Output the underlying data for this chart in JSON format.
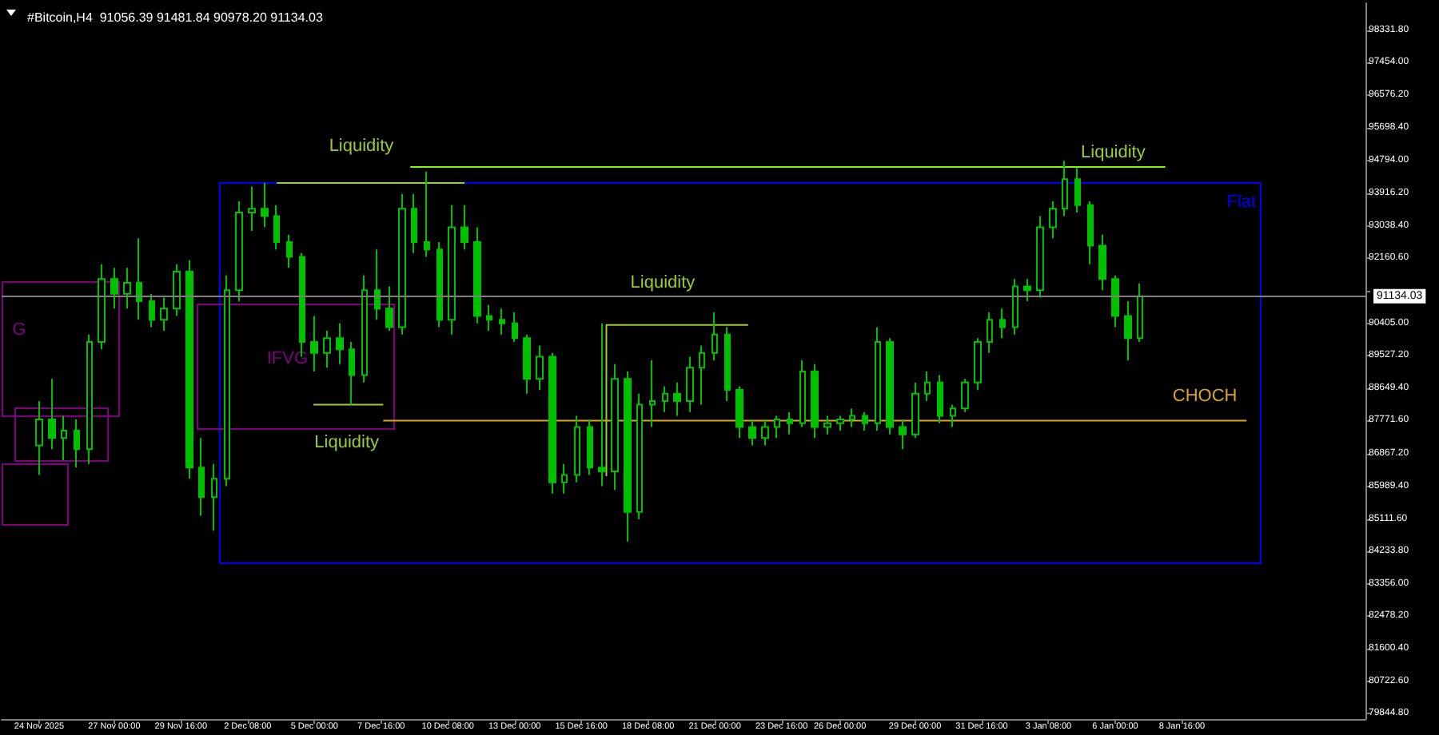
{
  "chart_data": {
    "type": "candlestick",
    "title": "#Bitcoin,H4  91056.39 91481.84 90978.20 91134.03",
    "color": "#00c000",
    "marker": "none",
    "line_style": "solid",
    "grid": false,
    "x": [
      "2025-11-24T00:00",
      "2025-11-24T12:00",
      "2025-11-25T00:00",
      "2025-11-25T12:00",
      "2025-11-26T00:00",
      "2025-11-26T12:00",
      "2025-11-27T00:00",
      "2025-11-27T12:00",
      "2025-11-28T00:00",
      "2025-11-28T12:00",
      "2025-11-29T00:00",
      "2025-11-29T12:00",
      "2025-11-30T00:00",
      "2025-11-30T12:00",
      "2025-12-01T00:00",
      "2025-12-01T12:00",
      "2025-12-02T00:00",
      "2025-12-02T12:00",
      "2025-12-03T00:00",
      "2025-12-03T12:00",
      "2025-12-04T00:00",
      "2025-12-04T12:00",
      "2025-12-05T00:00",
      "2025-12-05T12:00",
      "2025-12-06T00:00",
      "2025-12-06T12:00",
      "2025-12-07T00:00",
      "2025-12-07T12:00",
      "2025-12-08T00:00",
      "2025-12-08T12:00",
      "2025-12-09T00:00",
      "2025-12-09T12:00",
      "2025-12-10T00:00",
      "2025-12-10T12:00",
      "2025-12-11T00:00",
      "2025-12-11T12:00",
      "2025-12-12T00:00",
      "2025-12-12T12:00",
      "2025-12-13T00:00",
      "2025-12-13T12:00",
      "2025-12-14T00:00",
      "2025-12-14T12:00",
      "2025-12-15T00:00",
      "2025-12-15T12:00",
      "2025-12-16T00:00",
      "2025-12-16T12:00",
      "2025-12-17T00:00",
      "2025-12-17T12:00",
      "2025-12-18T00:00",
      "2025-12-18T12:00",
      "2025-12-19T00:00",
      "2025-12-19T12:00",
      "2025-12-20T00:00",
      "2025-12-20T12:00",
      "2025-12-21T00:00",
      "2025-12-21T12:00",
      "2025-12-22T00:00",
      "2025-12-22T12:00",
      "2025-12-23T00:00",
      "2025-12-23T12:00",
      "2025-12-24T00:00",
      "2025-12-24T12:00",
      "2025-12-25T00:00",
      "2025-12-25T12:00",
      "2025-12-26T00:00",
      "2025-12-26T12:00",
      "2025-12-27T00:00",
      "2025-12-27T12:00",
      "2025-12-28T00:00",
      "2025-12-28T12:00",
      "2025-12-29T00:00",
      "2025-12-29T12:00",
      "2025-12-30T00:00",
      "2025-12-30T12:00",
      "2025-12-31T00:00",
      "2025-12-31T12:00",
      "2026-01-01T00:00",
      "2026-01-01T12:00",
      "2026-01-02T00:00",
      "2026-01-02T12:00",
      "2026-01-03T00:00",
      "2026-01-03T12:00",
      "2026-01-04T00:00",
      "2026-01-04T12:00",
      "2026-01-05T00:00",
      "2026-01-05T12:00",
      "2026-01-06T00:00",
      "2026-01-06T12:00",
      "2026-01-07T00:00"
    ],
    "ohlc": [
      [
        87100,
        88300,
        86300,
        87800
      ],
      [
        87800,
        88900,
        87000,
        87300
      ],
      [
        87300,
        87900,
        86700,
        87500
      ],
      [
        87500,
        87800,
        86500,
        87000
      ],
      [
        87000,
        90100,
        86600,
        89900
      ],
      [
        89900,
        92000,
        89700,
        91600
      ],
      [
        91600,
        91900,
        90800,
        91200
      ],
      [
        91200,
        91900,
        90800,
        91500
      ],
      [
        91500,
        92700,
        90500,
        91000
      ],
      [
        91000,
        91200,
        90300,
        90500
      ],
      [
        90500,
        91100,
        90200,
        90800
      ],
      [
        90800,
        92000,
        90600,
        91800
      ],
      [
        91800,
        92100,
        86200,
        86500
      ],
      [
        86500,
        87300,
        85200,
        85700
      ],
      [
        85700,
        86600,
        84800,
        86200
      ],
      [
        86200,
        91700,
        86000,
        91300
      ],
      [
        91300,
        93700,
        91000,
        93400
      ],
      [
        93400,
        94100,
        92900,
        93500
      ],
      [
        93500,
        94200,
        93000,
        93300
      ],
      [
        93300,
        93600,
        92400,
        92600
      ],
      [
        92600,
        92800,
        91900,
        92200
      ],
      [
        92200,
        92300,
        89500,
        89900
      ],
      [
        89900,
        90600,
        89100,
        89600
      ],
      [
        89600,
        90200,
        89200,
        90000
      ],
      [
        90000,
        90400,
        89300,
        89700
      ],
      [
        89700,
        89900,
        88200,
        89000
      ],
      [
        89000,
        91700,
        88800,
        91300
      ],
      [
        91300,
        92400,
        90500,
        90800
      ],
      [
        90800,
        91400,
        90200,
        90300
      ],
      [
        90300,
        93900,
        90100,
        93500
      ],
      [
        93500,
        93900,
        92300,
        92600
      ],
      [
        92600,
        94500,
        92200,
        92400
      ],
      [
        92400,
        92600,
        90300,
        90500
      ],
      [
        90500,
        93600,
        90100,
        93000
      ],
      [
        93000,
        93600,
        92400,
        92600
      ],
      [
        92600,
        93000,
        90400,
        90600
      ],
      [
        90600,
        90900,
        90200,
        90500
      ],
      [
        90500,
        90800,
        90100,
        90400
      ],
      [
        90400,
        90700,
        89900,
        90000
      ],
      [
        90000,
        90100,
        88500,
        88900
      ],
      [
        88900,
        89800,
        88600,
        89500
      ],
      [
        89500,
        89600,
        85800,
        86100
      ],
      [
        86100,
        86600,
        85800,
        86300
      ],
      [
        86300,
        87900,
        86100,
        87600
      ],
      [
        87600,
        87800,
        86300,
        86500
      ],
      [
        86500,
        90400,
        86000,
        86400
      ],
      [
        86400,
        89300,
        85900,
        88900
      ],
      [
        88900,
        89100,
        84500,
        85300
      ],
      [
        85300,
        88500,
        85100,
        88200
      ],
      [
        88200,
        89400,
        87600,
        88300
      ],
      [
        88300,
        88700,
        88000,
        88500
      ],
      [
        88500,
        88800,
        87900,
        88300
      ],
      [
        88300,
        89500,
        88000,
        89200
      ],
      [
        89200,
        89800,
        88200,
        89600
      ],
      [
        89600,
        90700,
        89400,
        90100
      ],
      [
        90100,
        90300,
        88300,
        88600
      ],
      [
        88600,
        88700,
        87300,
        87600
      ],
      [
        87600,
        87800,
        87100,
        87300
      ],
      [
        87300,
        87800,
        87100,
        87600
      ],
      [
        87600,
        87900,
        87300,
        87800
      ],
      [
        87800,
        88000,
        87400,
        87700
      ],
      [
        87700,
        89400,
        87600,
        89100
      ],
      [
        89100,
        89300,
        87300,
        87600
      ],
      [
        87600,
        87900,
        87400,
        87700
      ],
      [
        87700,
        87900,
        87500,
        87800
      ],
      [
        87800,
        88100,
        87600,
        87900
      ],
      [
        87900,
        88000,
        87500,
        87700
      ],
      [
        87700,
        90300,
        87500,
        89900
      ],
      [
        89900,
        90000,
        87400,
        87600
      ],
      [
        87600,
        87800,
        87000,
        87400
      ],
      [
        87400,
        88800,
        87300,
        88500
      ],
      [
        88500,
        89100,
        88300,
        88800
      ],
      [
        88800,
        89000,
        87700,
        87900
      ],
      [
        87900,
        88200,
        87600,
        88100
      ],
      [
        88100,
        88900,
        88000,
        88800
      ],
      [
        88800,
        90000,
        88600,
        89900
      ],
      [
        89900,
        90700,
        89600,
        90500
      ],
      [
        90500,
        90800,
        90000,
        90300
      ],
      [
        90300,
        91600,
        90100,
        91400
      ],
      [
        91400,
        91600,
        91000,
        91300
      ],
      [
        91300,
        93300,
        91100,
        93000
      ],
      [
        93000,
        93700,
        92700,
        93500
      ],
      [
        93500,
        94800,
        93300,
        94300
      ],
      [
        94300,
        94600,
        93400,
        93600
      ],
      [
        93600,
        93700,
        92000,
        92500
      ],
      [
        92500,
        92800,
        91300,
        91600
      ],
      [
        91600,
        91700,
        90300,
        90600
      ],
      [
        90600,
        91000,
        89400,
        90000
      ],
      [
        90000,
        91481.84,
        89900,
        91134.03
      ]
    ],
    "series": [
      {
        "type": "line",
        "color": "#9acd32",
        "x": [
          "2025-12-03T12:00",
          "2025-12-11T00:00"
        ],
        "values": [
          94200,
          94200
        ]
      },
      {
        "type": "line",
        "color": "#7cfc00",
        "x": [
          "2025-12-08T20:00",
          "2026-01-08T00:00"
        ],
        "values": [
          94630,
          94630
        ]
      },
      {
        "type": "line",
        "color": "#9acd32",
        "x": [
          "2025-12-16T16:00",
          "2025-12-16T16:00",
          "2025-12-22T08:00"
        ],
        "values": [
          86270,
          90360,
          90360
        ]
      },
      {
        "type": "line",
        "color": "#9acd32",
        "x": [
          "2025-12-04T23:00",
          "2025-12-07T18:00"
        ],
        "values": [
          88200,
          88200
        ]
      },
      {
        "type": "line",
        "color": "#daa520",
        "x": [
          "2025-12-07T18:00",
          "2026-01-11T06:00"
        ],
        "values": [
          87770,
          87770
        ]
      }
    ],
    "ref_lines": [
      {
        "axis": "y",
        "value": 91134.03,
        "label": "91134.03",
        "color": "#808080"
      }
    ],
    "annotations": [
      "Liquidity",
      "Liquidity",
      "Liquidity",
      "Liquidity",
      "IFVG",
      "Flat",
      "CHOCH",
      "G"
    ],
    "xlim": [
      "2025-11-22T12:00",
      "2026-01-16T00:00"
    ],
    "xticks": [
      {
        "value": "2025-11-24T00:00",
        "label": "24 Nov 2025"
      },
      {
        "value": "2025-11-27T00:00",
        "label": "27 Nov 00:00"
      },
      {
        "value": "2025-11-29T16:00",
        "label": "29 Nov 16:00"
      },
      {
        "value": "2025-12-02T08:00",
        "label": "2 Dec 08:00"
      },
      {
        "value": "2025-12-05T00:00",
        "label": "5 Dec 00:00"
      },
      {
        "value": "2025-12-07T16:00",
        "label": "7 Dec 16:00"
      },
      {
        "value": "2025-12-10T08:00",
        "label": "10 Dec 08:00"
      },
      {
        "value": "2025-12-13T00:00",
        "label": "13 Dec 00:00"
      },
      {
        "value": "2025-12-15T16:00",
        "label": "15 Dec 16:00"
      },
      {
        "value": "2025-12-18T08:00",
        "label": "18 Dec 08:00"
      },
      {
        "value": "2025-12-21T00:00",
        "label": "21 Dec 00:00"
      },
      {
        "value": "2025-12-23T16:00",
        "label": "23 Dec 16:00"
      },
      {
        "value": "2025-12-26T00:00",
        "label": "26 Dec 00:00"
      },
      {
        "value": "2025-12-29T00:00",
        "label": "29 Dec 00:00"
      },
      {
        "value": "2025-12-31T16:00",
        "label": "31 Dec 16:00"
      },
      {
        "value": "2026-01-03T08:00",
        "label": "3 Jan 08:00"
      },
      {
        "value": "2026-01-06T00:00",
        "label": "6 Jan 00:00"
      },
      {
        "value": "2026-01-08T16:00",
        "label": "8 Jan 16:00"
      }
    ],
    "ylim": [
      79700,
      99060
    ],
    "yticks": [
      {
        "value": 98331.8,
        "label": "98331.80"
      },
      {
        "value": 97454,
        "label": "97454.00"
      },
      {
        "value": 96576.2,
        "label": "96576.20"
      },
      {
        "value": 95698.4,
        "label": "95698.40"
      },
      {
        "value": 94794,
        "label": "94794.00"
      },
      {
        "value": 93916.2,
        "label": "93916.20"
      },
      {
        "value": 93038.4,
        "label": "93038.40"
      },
      {
        "value": 92160.6,
        "label": "92160.60"
      },
      {
        "value": 91282.8,
        "label": null
      },
      {
        "value": 90405,
        "label": "90405.00"
      },
      {
        "value": 89527.2,
        "label": "89527.20"
      },
      {
        "value": 88649.4,
        "label": "88649.40"
      },
      {
        "value": 87771.6,
        "label": "87771.60"
      },
      {
        "value": 86867.2,
        "label": "86867.20"
      },
      {
        "value": 85989.4,
        "label": "85989.40"
      },
      {
        "value": 85111.6,
        "label": "85111.60"
      },
      {
        "value": 84233.8,
        "label": "84233.80"
      },
      {
        "value": 83356,
        "label": "83356.00"
      },
      {
        "value": 82478.2,
        "label": "82478.20"
      },
      {
        "value": 81600.4,
        "label": "81600.40"
      },
      {
        "value": 80722.6,
        "label": "80722.60"
      },
      {
        "value": 79844.8,
        "label": "79844.80"
      }
    ]
  }
}
